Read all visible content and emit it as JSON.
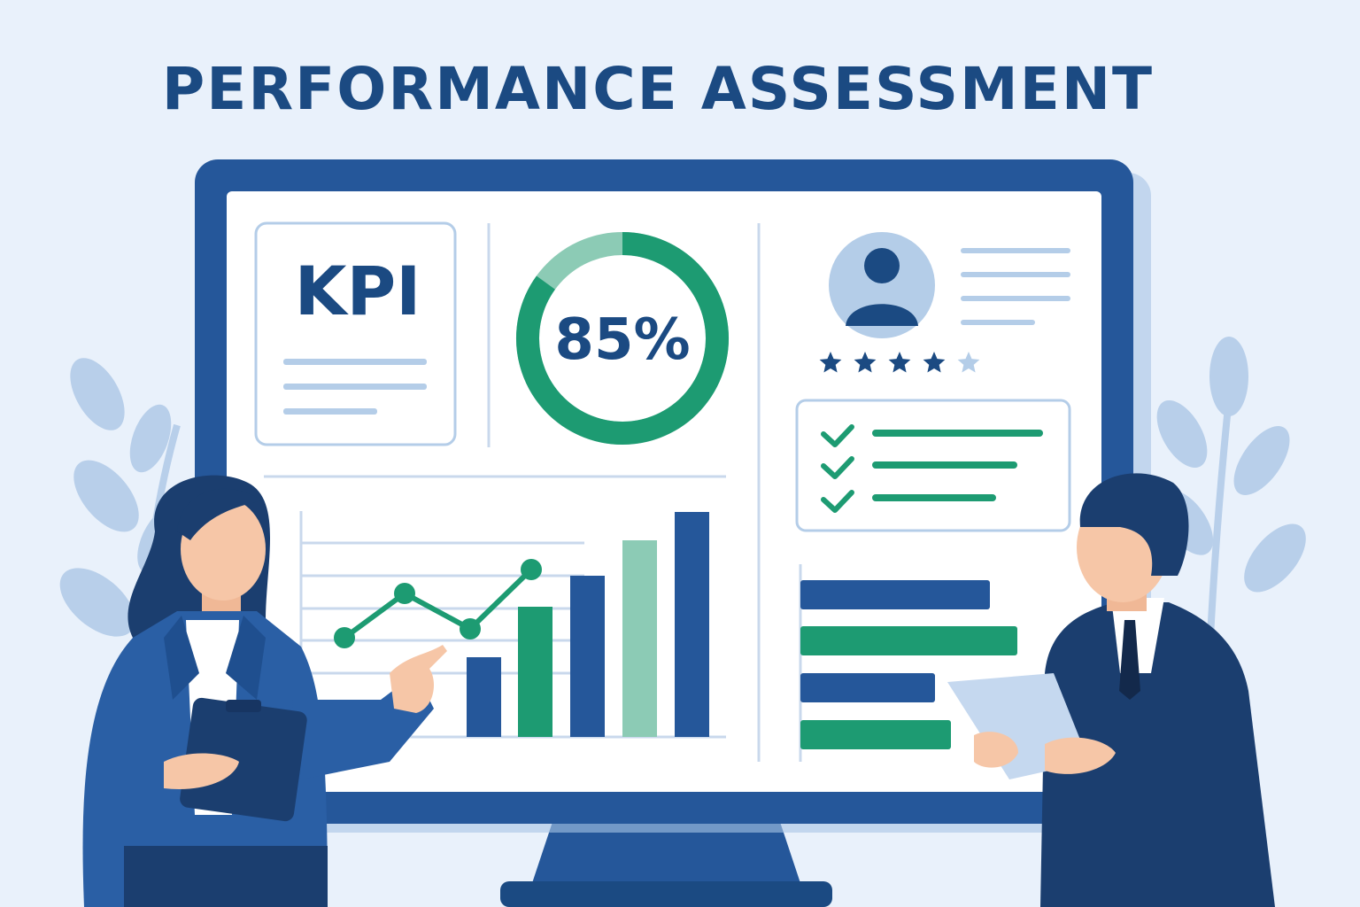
{
  "title": "PERFORMANCE ASSESSMENT",
  "kpi_card": {
    "label": "KPI"
  },
  "progress_ring": {
    "value_label": "85%",
    "value": 0.85
  },
  "profile_card": {
    "rating": 4,
    "rating_max": 5,
    "avatar_icon": "user-avatar-icon",
    "star_icon": "star-icon"
  },
  "checklist": {
    "items": 3,
    "check_icon": "check-icon"
  },
  "colors": {
    "navy": "#1b4a82",
    "blue": "#25579a",
    "green": "#1d9b72",
    "light_green": "#8ccbb5",
    "light_blue": "#b4cde8",
    "background": "#e9f1fb"
  }
}
